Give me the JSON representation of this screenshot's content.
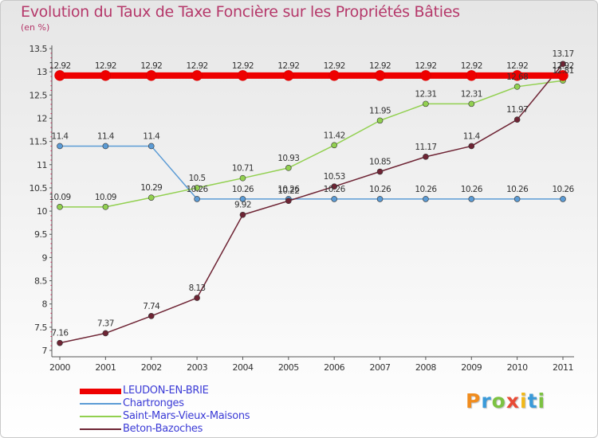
{
  "title": "Evolution du Taux de Taxe Foncière sur les Propriétés Bâties",
  "unit_label": "(en %)",
  "logo": {
    "letters": [
      "P",
      "r",
      "o",
      "x",
      "i",
      "t",
      "i"
    ],
    "colors": [
      "#f08c1e",
      "#3a9ad9",
      "#7cc242",
      "#e84a35",
      "#f2b818",
      "#3a9ad9",
      "#7cc242"
    ]
  },
  "chart_data": {
    "type": "line",
    "title": "Evolution du Taux de Taxe Foncière sur les Propriétés Bâties",
    "ylabel": "(en %)",
    "xlabel": "",
    "x": [
      "2000",
      "2001",
      "2002",
      "2003",
      "2004",
      "2005",
      "2006",
      "2007",
      "2008",
      "2009",
      "2010",
      "2011"
    ],
    "ylim": [
      7,
      13.5
    ],
    "yticks": [
      "7",
      "7.5",
      "8",
      "8.5",
      "9",
      "9.5",
      "10",
      "10.5",
      "11",
      "11.5",
      "12",
      "12.5",
      "13",
      "13.5"
    ],
    "grid": false,
    "legend_position": "bottom-left",
    "series": [
      {
        "name": "LEUDON-EN-BRIE",
        "color": "#ee0000",
        "values": [
          12.92,
          12.92,
          12.92,
          12.92,
          12.92,
          12.92,
          12.92,
          12.92,
          12.92,
          12.92,
          12.92,
          12.92
        ],
        "labels": [
          "12.92",
          "12.92",
          "12.92",
          "12.92",
          "12.92",
          "12.92",
          "12.92",
          "12.92",
          "12.92",
          "12.92",
          "12.92",
          "12.92"
        ]
      },
      {
        "name": "Chartronges",
        "color": "#5b9bd5",
        "values": [
          11.4,
          11.4,
          11.4,
          10.26,
          10.26,
          10.26,
          10.26,
          10.26,
          10.26,
          10.26,
          10.26,
          10.26
        ],
        "labels": [
          "11.4",
          "11.4",
          "11.4",
          "10.26",
          "10.26",
          "10.26",
          "10.26",
          "10.26",
          "10.26",
          "10.26",
          "10.26",
          "10.26"
        ]
      },
      {
        "name": "Saint-Mars-Vieux-Maisons",
        "color": "#92d050",
        "values": [
          10.09,
          10.09,
          10.29,
          10.5,
          10.71,
          10.93,
          11.42,
          11.95,
          12.31,
          12.31,
          12.68,
          12.81
        ],
        "labels": [
          "10.09",
          "10.09",
          "10.29",
          "10.5",
          "10.71",
          "10.93",
          "11.42",
          "11.95",
          "12.31",
          "12.31",
          "12.68",
          "12.81"
        ]
      },
      {
        "name": "Beton-Bazoches",
        "color": "#6e2434",
        "values": [
          7.16,
          7.37,
          7.74,
          8.13,
          9.92,
          10.22,
          10.53,
          10.85,
          11.17,
          11.4,
          11.97,
          13.17
        ],
        "labels": [
          "7.16",
          "7.37",
          "7.74",
          "8.13",
          "9.92",
          "10.22",
          "10.53",
          "10.85",
          "11.17",
          "11.4",
          "11.97",
          "13.17"
        ]
      }
    ]
  }
}
